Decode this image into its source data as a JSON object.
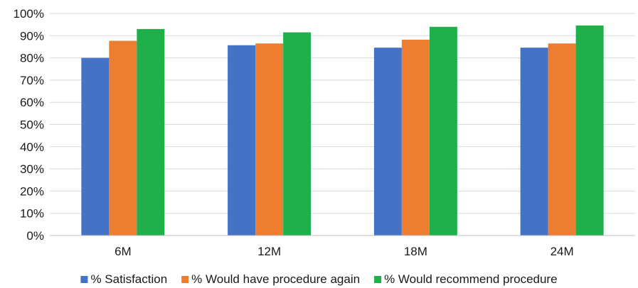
{
  "chart_data": {
    "type": "bar",
    "categories": [
      "6M",
      "12M",
      "18M",
      "24M"
    ],
    "series": [
      {
        "name": "% Satisfaction",
        "color": "#4472c4",
        "values": [
          80,
          85.7,
          84.6,
          84.6
        ]
      },
      {
        "name": "% Would have procedure again",
        "color": "#ed7d31",
        "values": [
          87.7,
          86.5,
          88.2,
          86.5
        ]
      },
      {
        "name": "% Would recommend procedure",
        "color": "#1fb04b",
        "values": [
          93.0,
          91.5,
          94.0,
          94.6
        ]
      }
    ],
    "ylim": [
      0,
      100
    ],
    "yticks": [
      0,
      10,
      20,
      30,
      40,
      50,
      60,
      70,
      80,
      90,
      100
    ],
    "ytick_labels": [
      "0%",
      "10%",
      "20%",
      "30%",
      "40%",
      "50%",
      "60%",
      "70%",
      "80%",
      "90%",
      "100%"
    ],
    "title": "",
    "xlabel": "",
    "ylabel": "",
    "grid": true,
    "legend_position": "bottom"
  }
}
